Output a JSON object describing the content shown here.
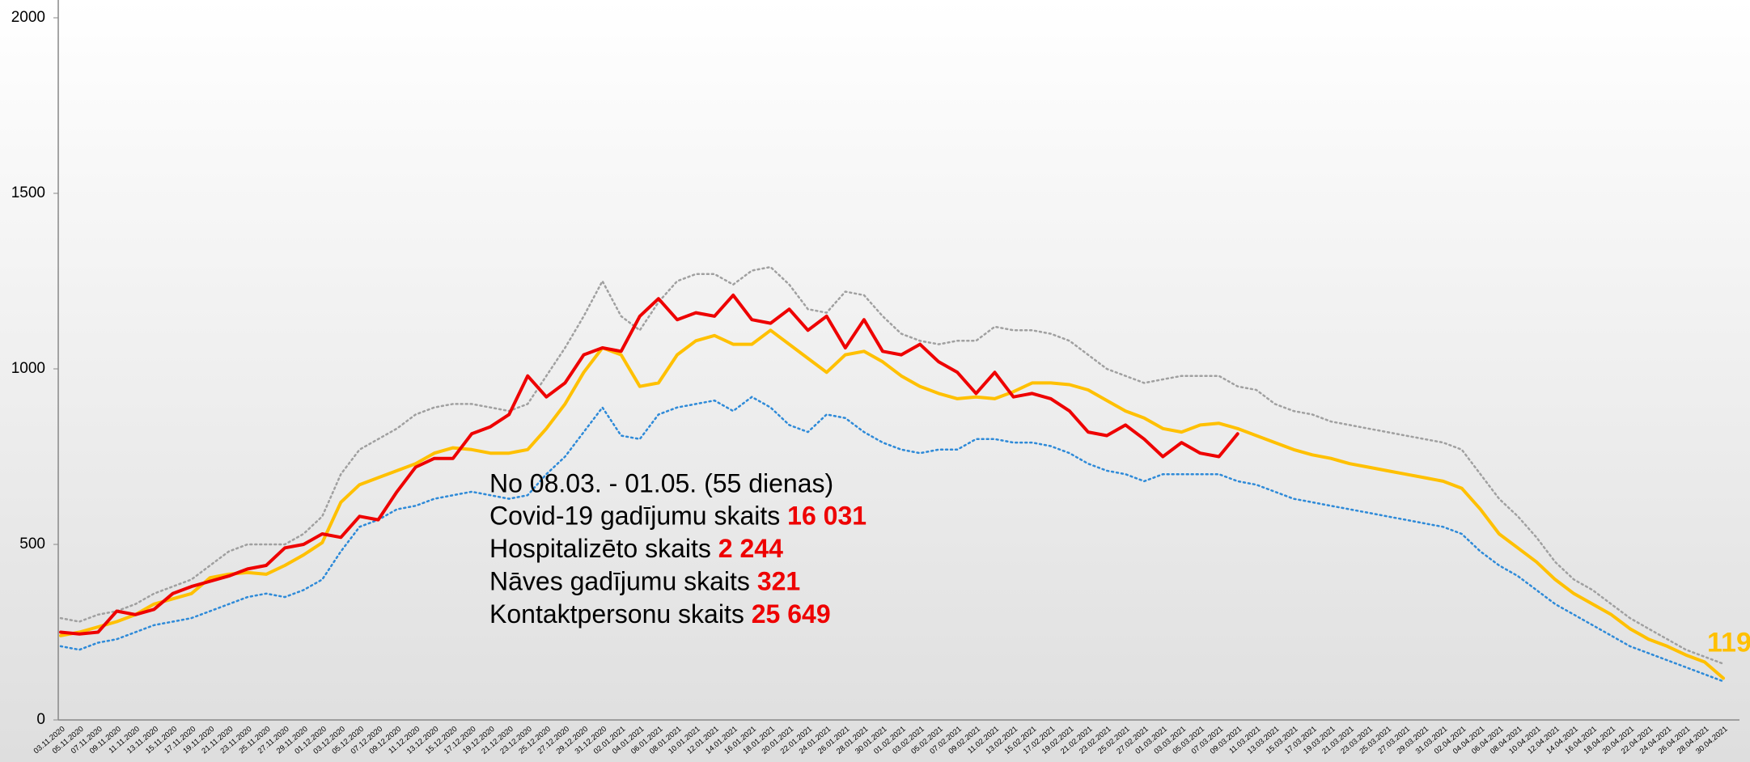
{
  "chart_data": {
    "type": "line",
    "categories": [
      "03.11.2020",
      "05.11.2020",
      "07.11.2020",
      "09.11.2020",
      "11.11.2020",
      "13.11.2020",
      "15.11.2020",
      "17.11.2020",
      "19.11.2020",
      "21.11.2020",
      "23.11.2020",
      "25.11.2020",
      "27.11.2020",
      "29.11.2020",
      "01.12.2020",
      "03.12.2020",
      "05.12.2020",
      "07.12.2020",
      "09.12.2020",
      "11.12.2020",
      "13.12.2020",
      "15.12.2020",
      "17.12.2020",
      "19.12.2020",
      "21.12.2020",
      "23.12.2020",
      "25.12.2020",
      "27.12.2020",
      "29.12.2020",
      "31.12.2020",
      "02.01.2021",
      "04.01.2021",
      "06.01.2021",
      "08.01.2021",
      "10.01.2021",
      "12.01.2021",
      "14.01.2021",
      "16.01.2021",
      "18.01.2021",
      "20.01.2021",
      "22.01.2021",
      "24.01.2021",
      "26.01.2021",
      "28.01.2021",
      "30.01.2021",
      "01.02.2021",
      "03.02.2021",
      "05.02.2021",
      "07.02.2021",
      "09.02.2021",
      "11.02.2021",
      "13.02.2021",
      "15.02.2021",
      "17.02.2021",
      "19.02.2021",
      "21.02.2021",
      "23.02.2021",
      "25.02.2021",
      "27.02.2021",
      "01.03.2021",
      "03.03.2021",
      "05.03.2021",
      "07.03.2021",
      "09.03.2021",
      "11.03.2021",
      "13.03.2021",
      "15.03.2021",
      "17.03.2021",
      "19.03.2021",
      "21.03.2021",
      "23.03.2021",
      "25.03.2021",
      "27.03.2021",
      "29.03.2021",
      "31.03.2021",
      "02.04.2021",
      "04.04.2021",
      "06.04.2021",
      "08.04.2021",
      "10.04.2021",
      "12.04.2021",
      "14.04.2021",
      "16.04.2021",
      "18.04.2021",
      "20.04.2021",
      "22.04.2021",
      "24.04.2021",
      "26.04.2021",
      "28.04.2021",
      "30.04.2021"
    ],
    "series": [
      {
        "color": "#a0a0a0",
        "dash": true,
        "values": [
          290,
          280,
          300,
          310,
          330,
          360,
          380,
          400,
          440,
          480,
          500,
          500,
          500,
          530,
          580,
          700,
          770,
          800,
          830,
          870,
          890,
          900,
          900,
          890,
          880,
          900,
          980,
          1060,
          1150,
          1250,
          1150,
          1110,
          1190,
          1250,
          1270,
          1270,
          1240,
          1280,
          1290,
          1240,
          1170,
          1160,
          1220,
          1210,
          1150,
          1100,
          1080,
          1070,
          1080,
          1080,
          1120,
          1110,
          1110,
          1100,
          1080,
          1040,
          1000,
          980,
          960,
          970,
          980,
          980,
          980,
          950,
          940,
          900,
          880,
          870,
          850,
          840,
          830,
          820,
          810,
          800,
          790,
          770,
          700,
          630,
          580,
          520,
          450,
          400,
          370,
          330,
          290,
          260,
          230,
          200,
          180,
          160
        ]
      },
      {
        "color": "#2e8ad8",
        "dash": true,
        "values": [
          210,
          200,
          220,
          230,
          250,
          270,
          280,
          290,
          310,
          330,
          350,
          360,
          350,
          370,
          400,
          480,
          550,
          570,
          600,
          610,
          630,
          640,
          650,
          640,
          630,
          640,
          700,
          750,
          820,
          890,
          810,
          800,
          870,
          890,
          900,
          910,
          880,
          920,
          890,
          840,
          820,
          870,
          860,
          820,
          790,
          770,
          760,
          770,
          770,
          800,
          800,
          790,
          790,
          780,
          760,
          730,
          710,
          700,
          680,
          700,
          700,
          700,
          700,
          680,
          670,
          650,
          630,
          620,
          610,
          600,
          590,
          580,
          570,
          560,
          550,
          530,
          480,
          440,
          410,
          370,
          330,
          300,
          270,
          240,
          210,
          190,
          170,
          150,
          130,
          110
        ]
      },
      {
        "color": "#ffc000",
        "dash": false,
        "end_label": "119",
        "values": [
          240,
          250,
          265,
          280,
          300,
          330,
          345,
          360,
          405,
          415,
          420,
          415,
          440,
          470,
          505,
          620,
          670,
          690,
          710,
          730,
          760,
          775,
          770,
          760,
          760,
          770,
          830,
          900,
          990,
          1060,
          1040,
          950,
          960,
          1040,
          1080,
          1095,
          1070,
          1070,
          1110,
          1070,
          1030,
          990,
          1040,
          1050,
          1020,
          980,
          950,
          930,
          915,
          920,
          915,
          935,
          960,
          960,
          955,
          940,
          910,
          880,
          860,
          830,
          820,
          840,
          845,
          830,
          810,
          790,
          770,
          755,
          745,
          730,
          720,
          710,
          700,
          690,
          680,
          660,
          600,
          530,
          490,
          450,
          400,
          360,
          330,
          300,
          260,
          230,
          210,
          185,
          165,
          119
        ]
      },
      {
        "color": "#ee0000",
        "dash": false,
        "values": [
          250,
          245,
          250,
          310,
          300,
          315,
          360,
          380,
          395,
          410,
          430,
          440,
          490,
          500,
          530,
          520,
          580,
          570,
          650,
          720,
          745,
          745,
          815,
          835,
          870,
          980,
          920,
          960,
          1040,
          1060,
          1050,
          1150,
          1200,
          1140,
          1160,
          1150,
          1210,
          1140,
          1130,
          1170,
          1110,
          1150,
          1060,
          1140,
          1050,
          1040,
          1070,
          1020,
          990,
          930,
          990,
          920,
          930,
          915,
          880,
          820,
          810,
          840,
          800,
          750,
          790,
          760,
          750,
          815,
          null,
          null,
          null,
          null,
          null,
          null,
          null,
          null,
          null,
          null,
          null,
          null,
          null,
          null,
          null,
          null,
          null,
          null,
          null,
          null,
          null,
          null,
          null,
          null,
          null,
          null
        ]
      }
    ],
    "ylim": [
      0,
      2000
    ],
    "yticks": [
      0,
      500,
      1000,
      1500,
      2000
    ],
    "annotation": {
      "title": "No 08.03. - 01.05. (55 dienas)",
      "items": [
        {
          "label": "Covid-19 gadījumu skaits",
          "value": "16 031"
        },
        {
          "label": "Hospitalizēto skaits",
          "value": "2 244"
        },
        {
          "label": "Nāves gadījumu skaits",
          "value": "321"
        },
        {
          "label": "Kontaktpersonu skaits",
          "value": "25 649"
        }
      ]
    }
  }
}
